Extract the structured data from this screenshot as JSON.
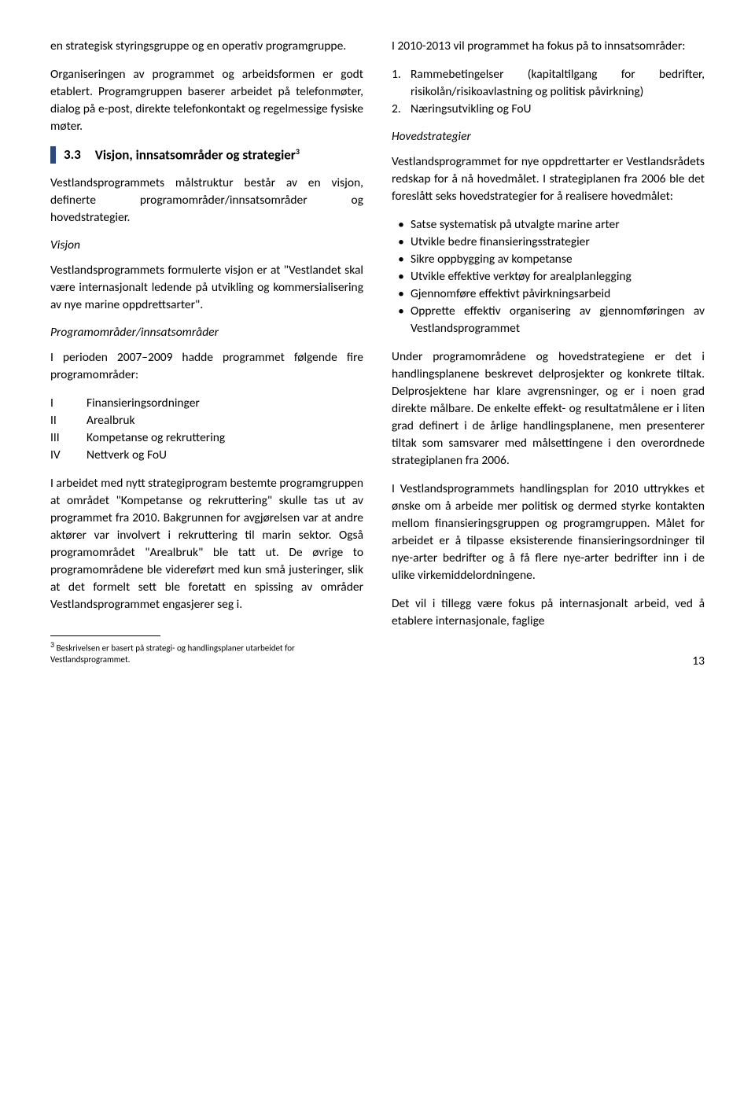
{
  "left": {
    "p1": "en strategisk styringsgruppe og en operativ programgruppe.",
    "p2": "Organiseringen av programmet og arbeidsformen er godt etablert. Programgruppen baserer arbeidet på telefonmøter, dialog på e-post, direkte telefonkontakt og regelmessige fysiske møter.",
    "section_num": "3.3",
    "section_title": "Visjon, innsatsområder og strategier",
    "section_sup": "3",
    "p3": "Vestlandsprogrammets målstruktur består av en visjon, definerte programområder/innsatsområder og hovedstrategier.",
    "h_visjon": "Visjon",
    "p4": "Vestlandsprogrammets formulerte visjon er at \"Vestlandet skal være internasjonalt ledende på utvikling og kommersialisering av nye marine oppdrettsarter\".",
    "h_prog": "Programområder/innsatsområder",
    "p5": "I perioden 2007–2009 hadde programmet følgende fire programområder:",
    "roman": [
      {
        "n": "I",
        "t": "Finansieringsordninger"
      },
      {
        "n": "II",
        "t": "Arealbruk"
      },
      {
        "n": "III",
        "t": "Kompetanse og rekruttering"
      },
      {
        "n": "IV",
        "t": "Nettverk og FoU"
      }
    ],
    "p6": "I arbeidet med nytt strategiprogram bestemte programgruppen at området \"Kompetanse og rekruttering\" skulle tas ut av programmet fra 2010. Bakgrunnen for avgjørelsen var at andre aktører var involvert i rekruttering til marin sektor. Også programområdet \"Arealbruk\" ble tatt ut. De øvrige to programområdene ble videreført med kun små justeringer, slik at det formelt sett ble foretatt en spissing av områder Vestlandsprogrammet engasjerer seg i.",
    "footnote_sup": "3",
    "footnote": " Beskrivelsen er basert på strategi- og handlingsplaner utarbeidet for Vestlandsprogrammet."
  },
  "right": {
    "p1": "I 2010-2013 vil programmet ha fokus på to innsatsområder:",
    "numlist": [
      {
        "n": "1.",
        "t": "Rammebetingelser (kapitaltilgang for bedrifter, risikolån/risikoavlastning og politisk påvirkning)"
      },
      {
        "n": "2.",
        "t": "Næringsutvikling og FoU"
      }
    ],
    "h_hoved": "Hovedstrategier",
    "p2": "Vestlandsprogrammet for nye oppdrettarter er Vestlandsrådets redskap for å nå hovedmålet. I strategiplanen fra 2006 ble det foreslått seks hovedstrategier for å realisere hovedmålet:",
    "bullets": [
      "Satse systematisk på utvalgte marine arter",
      "Utvikle bedre finansieringsstrategier",
      "Sikre oppbygging av kompetanse",
      "Utvikle effektive verktøy for arealplanlegging",
      "Gjennomføre effektivt påvirkningsarbeid",
      "Opprette effektiv organisering av gjennomføringen av Vestlandsprogrammet"
    ],
    "p3": "Under programområdene og hovedstrategiene er det i handlingsplanene beskrevet delprosjekter og konkrete tiltak. Delprosjektene har klare avgrensninger, og er i noen grad direkte målbare. De enkelte effekt- og resultatmålene er i liten grad definert i de årlige handlingsplanene, men presenterer tiltak som samsvarer med målsettingene i den overordnede strategiplanen fra 2006.",
    "p4": "I Vestlandsprogrammets handlingsplan for 2010 uttrykkes et ønske om å arbeide mer politisk og dermed styrke kontakten mellom finansieringsgruppen og programgruppen. Målet for arbeidet er å tilpasse eksisterende finansieringsordninger til nye-arter bedrifter og å få flere nye-arter bedrifter inn i de ulike virkemiddelordningene.",
    "p5": "Det vil i tillegg være fokus på internasjonalt arbeid, ved å etablere internasjonale, faglige"
  },
  "pagenum": "13"
}
